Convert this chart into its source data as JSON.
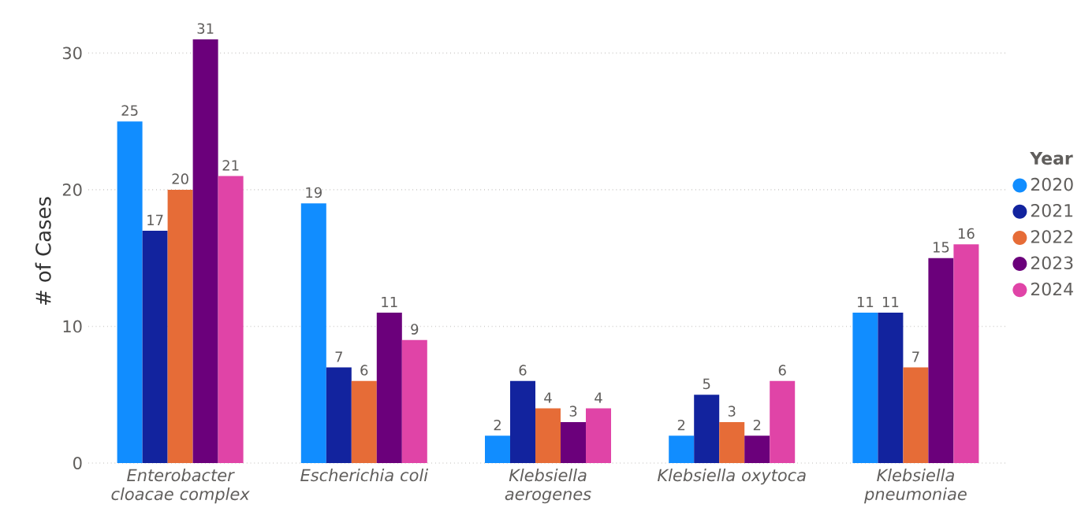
{
  "chart_data": {
    "type": "bar",
    "categories": [
      "Enterobacter cloacae complex",
      "Escherichia coli",
      "Klebsiella aerogenes",
      "Klebsiella oxytoca",
      "Klebsiella pneumoniae"
    ],
    "series": [
      {
        "name": "2020",
        "color": "#118dff",
        "values": [
          25,
          19,
          2,
          2,
          11
        ]
      },
      {
        "name": "2021",
        "color": "#12239e",
        "values": [
          17,
          7,
          6,
          5,
          11
        ]
      },
      {
        "name": "2022",
        "color": "#e66c37",
        "values": [
          20,
          6,
          4,
          3,
          7
        ]
      },
      {
        "name": "2023",
        "color": "#6b007b",
        "values": [
          31,
          11,
          3,
          2,
          15
        ]
      },
      {
        "name": "2024",
        "color": "#e044a7",
        "values": [
          21,
          9,
          4,
          6,
          16
        ]
      }
    ],
    "ylabel": "# of Cases",
    "legend_title": "Year",
    "ylim": [
      0,
      31
    ],
    "yticks": [
      0,
      10,
      20,
      30
    ],
    "grid": "y",
    "legend": "right",
    "data_labels": true
  }
}
